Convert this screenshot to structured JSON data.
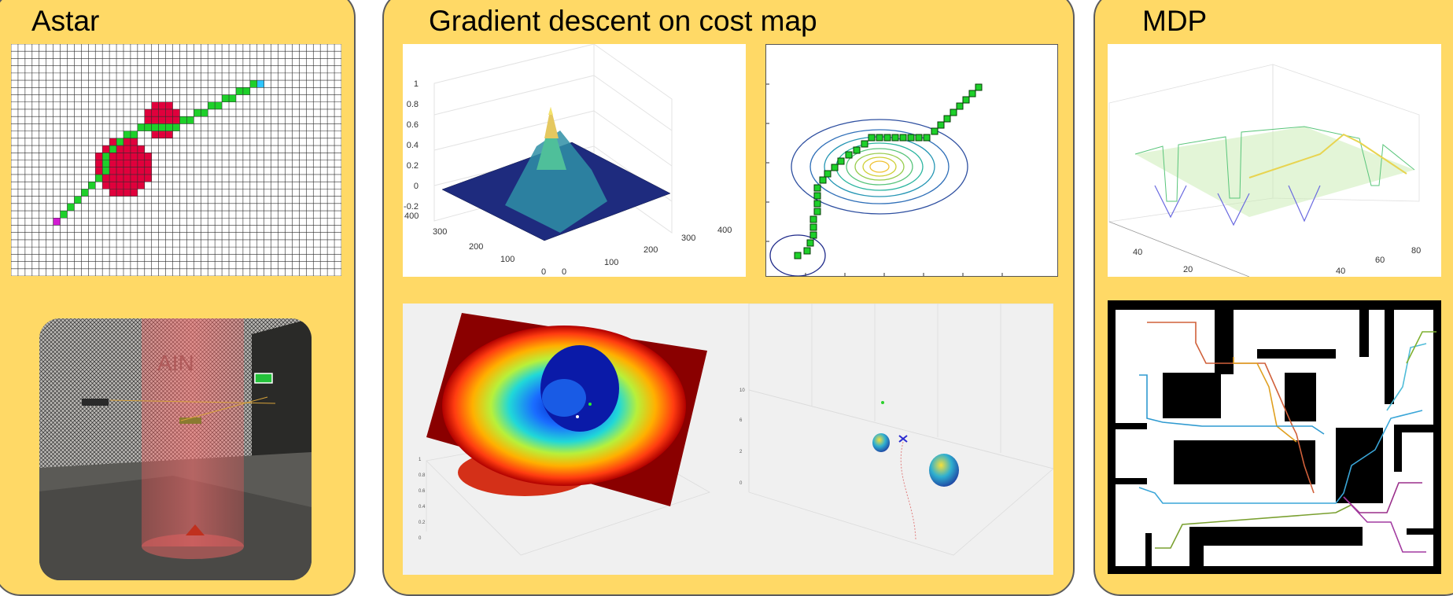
{
  "panels": {
    "astar": {
      "title": "Astar"
    },
    "gradient": {
      "title": "Gradient descent on cost map"
    },
    "mdp": {
      "title": "MDP"
    }
  },
  "photo": {
    "sign_text": "AIN"
  },
  "colors": {
    "panel_bg": "#ffd966",
    "obstacle": "#e0003c",
    "path": "#1ed02a",
    "start": "#d21bd2",
    "goal": "#2fc6ff"
  },
  "plot3d": {
    "z_ticks": [
      "1",
      "0.8",
      "0.6",
      "0.4",
      "0.2",
      "0",
      "-0.2"
    ],
    "y_ticks": [
      "400",
      "300",
      "200",
      "100",
      "0"
    ],
    "x_ticks": [
      "0",
      "100",
      "200",
      "300",
      "400"
    ]
  },
  "mdp_plot": {
    "y_ticks": [
      "40",
      "20"
    ],
    "x_ticks": [
      "40",
      "60",
      "80"
    ]
  }
}
